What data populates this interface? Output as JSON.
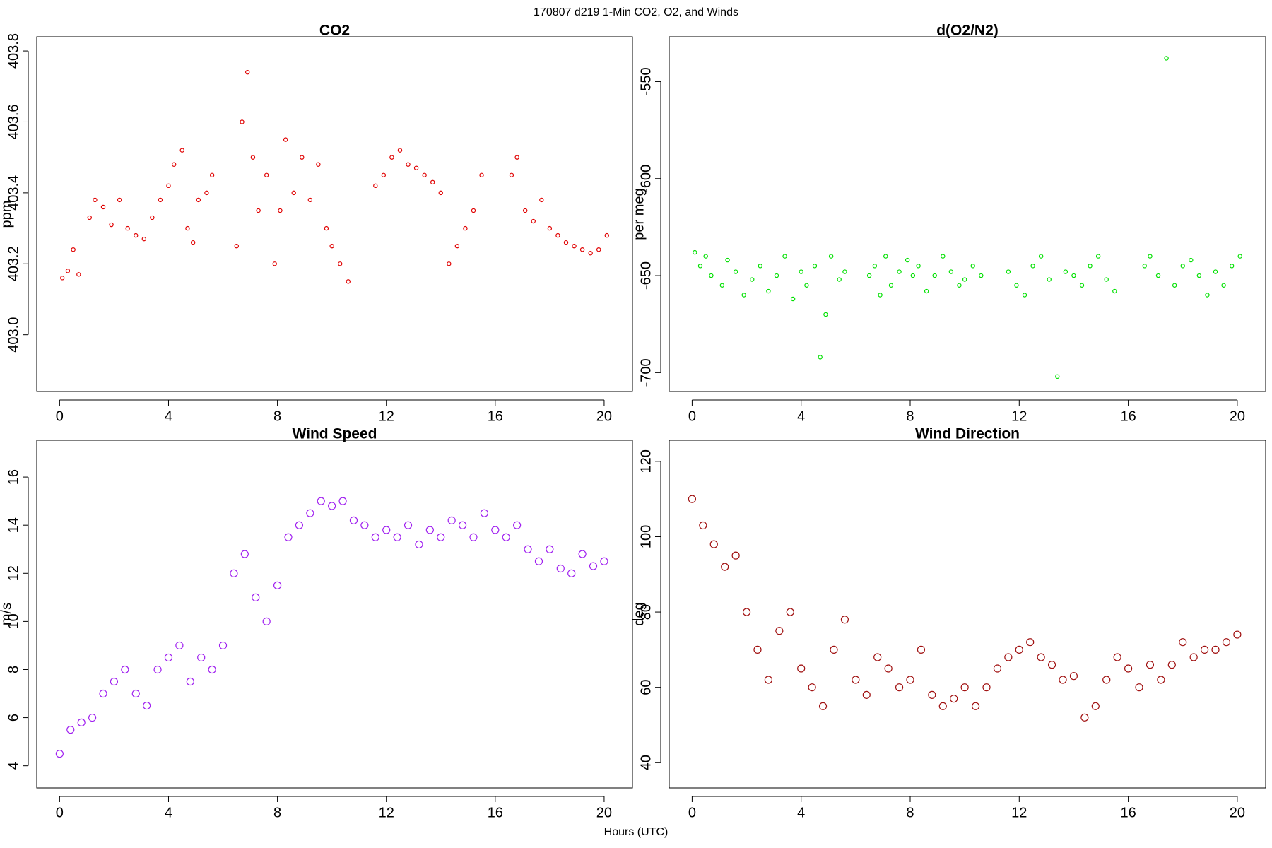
{
  "title": "170807   d219   1-Min CO2, O2, and Winds",
  "xlabel": "Hours (UTC)",
  "chart_data": [
    {
      "type": "scatter",
      "title": "CO2",
      "ylabel": "ppm",
      "color": "#e00000",
      "x": [
        0.1,
        0.3,
        0.5,
        0.7,
        1.1,
        1.3,
        1.6,
        1.9,
        2.2,
        2.5,
        2.8,
        3.1,
        3.4,
        3.7,
        4.0,
        4.2,
        4.5,
        4.7,
        4.9,
        5.1,
        5.4,
        5.6,
        6.5,
        6.7,
        6.9,
        7.1,
        7.3,
        7.6,
        7.9,
        8.1,
        8.3,
        8.6,
        8.9,
        9.2,
        9.5,
        9.8,
        10.0,
        10.3,
        10.6,
        11.6,
        11.9,
        12.2,
        12.5,
        12.8,
        13.1,
        13.4,
        13.7,
        14.0,
        14.3,
        14.6,
        14.9,
        15.2,
        15.5,
        16.6,
        16.8,
        17.1,
        17.4,
        17.7,
        18.0,
        18.3,
        18.6,
        18.9,
        19.2,
        19.5,
        19.8,
        20.1
      ],
      "y": [
        403.16,
        403.18,
        403.24,
        403.17,
        403.33,
        403.38,
        403.36,
        403.31,
        403.38,
        403.3,
        403.28,
        403.27,
        403.33,
        403.38,
        403.42,
        403.48,
        403.52,
        403.3,
        403.26,
        403.38,
        403.4,
        403.45,
        403.25,
        403.6,
        403.74,
        403.5,
        403.35,
        403.45,
        403.2,
        403.35,
        403.55,
        403.4,
        403.5,
        403.38,
        403.48,
        403.3,
        403.25,
        403.2,
        403.15,
        403.42,
        403.45,
        403.5,
        403.52,
        403.48,
        403.47,
        403.45,
        403.43,
        403.4,
        403.2,
        403.25,
        403.3,
        403.35,
        403.45,
        403.45,
        403.5,
        403.35,
        403.32,
        403.38,
        403.3,
        403.28,
        403.26,
        403.25,
        403.24,
        403.23,
        403.24,
        403.28
      ],
      "xlim": [
        -0.84,
        21.04
      ],
      "ylim": [
        402.84,
        403.84
      ],
      "xticks": [
        0,
        4,
        8,
        12,
        16,
        20
      ],
      "yticks": [
        {
          "value": 403,
          "label": "403.0"
        },
        403.2,
        403.4,
        403.6,
        403.8
      ]
    },
    {
      "type": "scatter",
      "title": "d(O2/N2)",
      "ylabel": "per meg",
      "color": "#00e000",
      "x": [
        0.1,
        0.3,
        0.5,
        0.7,
        1.1,
        1.3,
        1.6,
        1.9,
        2.2,
        2.5,
        2.8,
        3.1,
        3.4,
        3.7,
        4.0,
        4.2,
        4.5,
        4.7,
        4.9,
        5.1,
        5.4,
        5.6,
        6.5,
        6.7,
        6.9,
        7.1,
        7.3,
        7.6,
        7.9,
        8.1,
        8.3,
        8.6,
        8.9,
        9.2,
        9.5,
        9.8,
        10.0,
        10.3,
        10.6,
        11.6,
        11.9,
        12.2,
        12.5,
        12.8,
        13.1,
        13.4,
        13.7,
        14.0,
        14.3,
        14.6,
        14.9,
        15.2,
        15.5,
        16.6,
        16.8,
        17.1,
        17.4,
        17.7,
        18.0,
        18.3,
        18.6,
        18.9,
        19.2,
        19.5,
        19.8,
        20.1
      ],
      "y": [
        -638,
        -645,
        -640,
        -650,
        -655,
        -642,
        -648,
        -660,
        -652,
        -645,
        -658,
        -650,
        -640,
        -662,
        -648,
        -655,
        -645,
        -692,
        -670,
        -640,
        -652,
        -648,
        -650,
        -645,
        -660,
        -640,
        -655,
        -648,
        -642,
        -650,
        -645,
        -658,
        -650,
        -640,
        -648,
        -655,
        -652,
        -645,
        -650,
        -648,
        -655,
        -660,
        -645,
        -640,
        -652,
        -702,
        -648,
        -650,
        -655,
        -645,
        -640,
        -652,
        -658,
        -645,
        -640,
        -650,
        -538,
        -655,
        -645,
        -642,
        -650,
        -660,
        -648,
        -655,
        -645,
        -640
      ],
      "xlim": [
        -0.84,
        21.04
      ],
      "ylim": [
        -709.7,
        -526.9
      ],
      "xticks": [
        0,
        4,
        8,
        12,
        16,
        20
      ],
      "yticks": [
        -700,
        -650,
        -600,
        -550
      ]
    },
    {
      "type": "scatter",
      "title": "Wind Speed",
      "ylabel": "m/s",
      "color": "#a020f0",
      "x": [
        0,
        0.4,
        0.8,
        1.2,
        1.6,
        2.0,
        2.4,
        2.8,
        3.2,
        3.6,
        4.0,
        4.4,
        4.8,
        5.2,
        5.6,
        6.0,
        6.4,
        6.8,
        7.2,
        7.6,
        8.0,
        8.4,
        8.8,
        9.2,
        9.6,
        10.0,
        10.4,
        10.8,
        11.2,
        11.6,
        12.0,
        12.4,
        12.8,
        13.2,
        13.6,
        14.0,
        14.4,
        14.8,
        15.2,
        15.6,
        16.0,
        16.4,
        16.8,
        17.2,
        17.6,
        18.0,
        18.4,
        18.8,
        19.2,
        19.6,
        20.0
      ],
      "y": [
        4.5,
        5.5,
        5.8,
        6.0,
        7.0,
        7.5,
        8.0,
        7.0,
        6.5,
        8.0,
        8.5,
        9.0,
        7.5,
        8.5,
        8.0,
        9.0,
        12.0,
        12.8,
        11.0,
        10.0,
        11.5,
        13.5,
        14.0,
        14.5,
        15.0,
        14.8,
        15.0,
        14.2,
        14.0,
        13.5,
        13.8,
        13.5,
        14.0,
        13.2,
        13.8,
        13.5,
        14.2,
        14.0,
        13.5,
        14.5,
        13.8,
        13.5,
        14.0,
        13.0,
        12.5,
        13.0,
        12.2,
        12.0,
        12.8,
        12.3,
        12.5
      ],
      "xlim": [
        -0.84,
        21.04
      ],
      "ylim": [
        3.08,
        17.53
      ],
      "xticks": [
        0,
        4,
        8,
        12,
        16,
        20
      ],
      "yticks": [
        4,
        6,
        8,
        10,
        12,
        14,
        16
      ]
    },
    {
      "type": "scatter",
      "title": "Wind Direction",
      "ylabel": "deg",
      "color": "#a01010",
      "x": [
        0,
        0.4,
        0.8,
        1.2,
        1.6,
        2.0,
        2.4,
        2.8,
        3.2,
        3.6,
        4.0,
        4.4,
        4.8,
        5.2,
        5.6,
        6.0,
        6.4,
        6.8,
        7.2,
        7.6,
        8.0,
        8.4,
        8.8,
        9.2,
        9.6,
        10.0,
        10.4,
        10.8,
        11.2,
        11.6,
        12.0,
        12.4,
        12.8,
        13.2,
        13.6,
        14.0,
        14.4,
        14.8,
        15.2,
        15.6,
        16.0,
        16.4,
        16.8,
        17.2,
        17.6,
        18.0,
        18.4,
        18.8,
        19.2,
        19.6,
        20.0
      ],
      "y": [
        110,
        103,
        98,
        92,
        95,
        80,
        70,
        62,
        75,
        80,
        65,
        60,
        55,
        70,
        78,
        62,
        58,
        68,
        65,
        60,
        62,
        70,
        58,
        55,
        57,
        60,
        55,
        60,
        65,
        68,
        70,
        72,
        68,
        66,
        62,
        63,
        52,
        55,
        62,
        68,
        65,
        60,
        66,
        62,
        66,
        72,
        68,
        70,
        70,
        72,
        74
      ],
      "xlim": [
        -0.84,
        21.04
      ],
      "ylim": [
        33.3,
        125.6
      ],
      "xticks": [
        0,
        4,
        8,
        12,
        16,
        20
      ],
      "yticks": [
        40,
        60,
        80,
        100,
        120
      ]
    }
  ]
}
